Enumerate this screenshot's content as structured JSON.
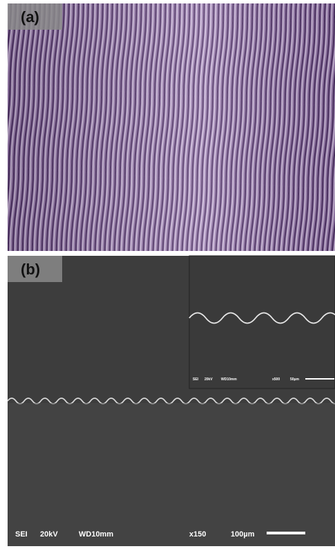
{
  "panels": [
    {
      "label": "(a)"
    },
    {
      "label": "(b)",
      "footer": [
        "SEI",
        "20kV",
        "WD10mm",
        "x150",
        "100µm"
      ],
      "inset": {
        "footer": [
          "SEI",
          "20kV",
          "WD10mm",
          "x500",
          "50µm"
        ]
      }
    }
  ]
}
